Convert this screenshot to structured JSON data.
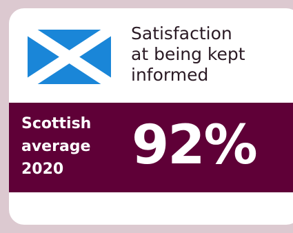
{
  "card": {
    "title": "Satisfaction\nat being kept\ninformed",
    "flag_icon": "scotland-flag-icon"
  },
  "stat": {
    "label": "Scottish\naverage\n2020",
    "value": "92%"
  },
  "colors": {
    "page_background": "#dcc9d0",
    "band": "#5f0037",
    "flag_blue": "#1a86d8",
    "flag_white": "#ffffff"
  }
}
